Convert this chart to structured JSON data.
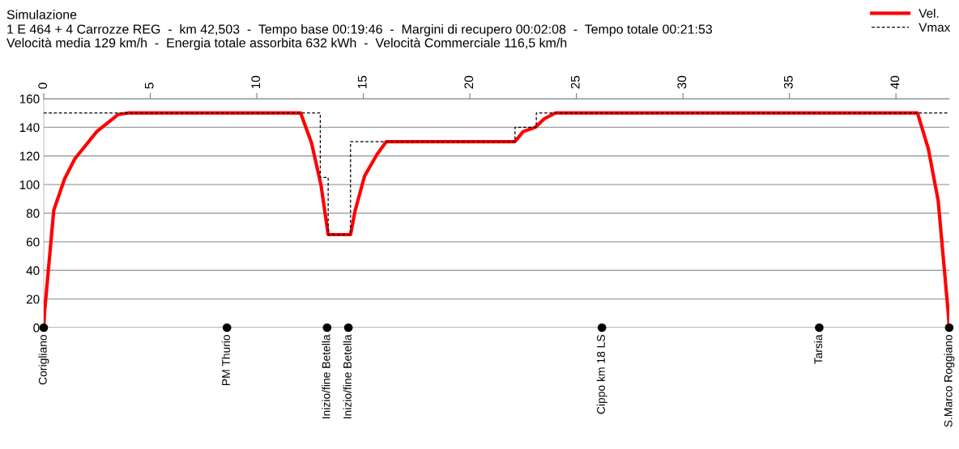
{
  "chart_data": {
    "type": "line",
    "title": "Simulazione",
    "subtitle": "1 E 464 + 4 Carrozze REG  -  km 42,503  -  Tempo base 00:19:46  -  Margini di recupero 00:02:08  -  Tempo totale 00:21:53\nVelocità media 129 km/h  -  Energia totale assorbita 632 kWh  -  Velocità Commerciale 116,5 km/h",
    "series": [
      {
        "name": "Vel.",
        "type": "line",
        "color": "#ff0000",
        "line_style": "solid",
        "x": [
          0,
          0.04,
          0.47,
          0.98,
          1.46,
          2.49,
          3.5,
          3.95,
          12.06,
          12.57,
          13.01,
          13.35,
          14.4,
          14.62,
          15.06,
          15.64,
          16.08,
          22.12,
          22.5,
          23.07,
          23.5,
          24.02,
          41.01,
          41.52,
          41.98,
          42.45,
          42.503
        ],
        "values": [
          0,
          11,
          82,
          104,
          118,
          137,
          149,
          150,
          150,
          129,
          100,
          65,
          65,
          82,
          106,
          121,
          130,
          130,
          137,
          140,
          146,
          150,
          150,
          125,
          89,
          11,
          0
        ]
      },
      {
        "name": "Vmax",
        "type": "step",
        "color": "#000000",
        "line_style": "dashed",
        "x": [
          0,
          12.98,
          13.35,
          14.4,
          22.12,
          23.12,
          42.503
        ],
        "values": [
          150,
          105,
          65,
          130,
          140,
          150,
          150
        ]
      },
      {
        "type": "scatter",
        "color": "#000000",
        "marker": "circle",
        "x": [
          0,
          8.6,
          13.3,
          14.3,
          26.2,
          36.4,
          42.5
        ],
        "values": [
          0,
          0,
          0,
          0,
          0,
          0,
          0
        ]
      }
    ],
    "annotations": [
      {
        "text": "Corigliano",
        "x": 0,
        "y": 0
      },
      {
        "text": "PM Thurio",
        "x": 8.6,
        "y": 0
      },
      {
        "text": "Inizio/fine Betella",
        "x": 13.3,
        "y": 0
      },
      {
        "text": "Inizio/fine Betella",
        "x": 14.3,
        "y": 0
      },
      {
        "text": "Cippo km 18 LS",
        "x": 26.2,
        "y": 0
      },
      {
        "text": "Tarsia",
        "x": 36.4,
        "y": 0
      },
      {
        "text": "S.Marco Roggiano",
        "x": 42.5,
        "y": 0
      }
    ],
    "xlim": [
      0,
      42.503
    ],
    "xticks": [
      0,
      5,
      10,
      15,
      20,
      25,
      30,
      35,
      40
    ],
    "ylim": [
      0,
      160
    ],
    "yticks": [
      0,
      20,
      40,
      60,
      80,
      100,
      120,
      140,
      160
    ],
    "grid": "y",
    "legend": "top right"
  }
}
